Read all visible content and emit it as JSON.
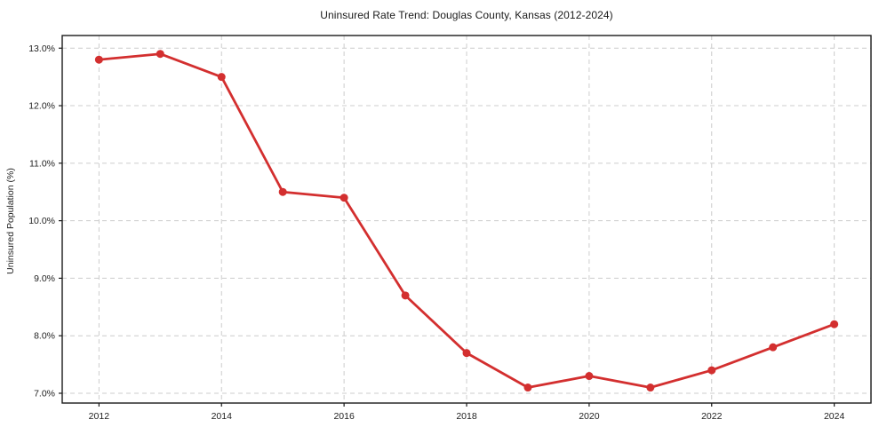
{
  "figure": {
    "title": "Uninsured Rate Trend: Douglas County, Kansas (2012-2024)"
  },
  "chart_data": {
    "type": "line",
    "title": "Uninsured Rate Trend: Douglas County, Kansas (2012-2024)",
    "xlabel": "",
    "ylabel": "Uninsured Population (%)",
    "x": [
      2012,
      2013,
      2014,
      2015,
      2016,
      2017,
      2018,
      2019,
      2020,
      2021,
      2022,
      2023,
      2024
    ],
    "values": [
      12.8,
      12.9,
      12.5,
      10.5,
      10.4,
      8.7,
      7.7,
      7.1,
      7.3,
      7.1,
      7.4,
      7.8,
      8.2
    ],
    "x_ticks": [
      2012,
      2014,
      2016,
      2018,
      2020,
      2022,
      2024
    ],
    "x_tick_labels": [
      "2012",
      "2014",
      "2016",
      "2018",
      "2020",
      "2022",
      "2024"
    ],
    "y_ticks": [
      7,
      8,
      9,
      10,
      11,
      12,
      13
    ],
    "y_tick_labels": [
      "7.0%",
      "8.0%",
      "9.0%",
      "10.0%",
      "11.0%",
      "12.0%",
      "13.0%"
    ],
    "xlim": [
      2011.4,
      2024.6
    ],
    "ylim": [
      6.83,
      13.22
    ],
    "grid": true,
    "legend_position": "none",
    "colors": {
      "line": "#d32f2f",
      "marker": "#d32f2f",
      "grid": "#cccccc",
      "spine": "#1a1a1a",
      "tick_text": "#222222",
      "background": "#ffffff"
    }
  }
}
